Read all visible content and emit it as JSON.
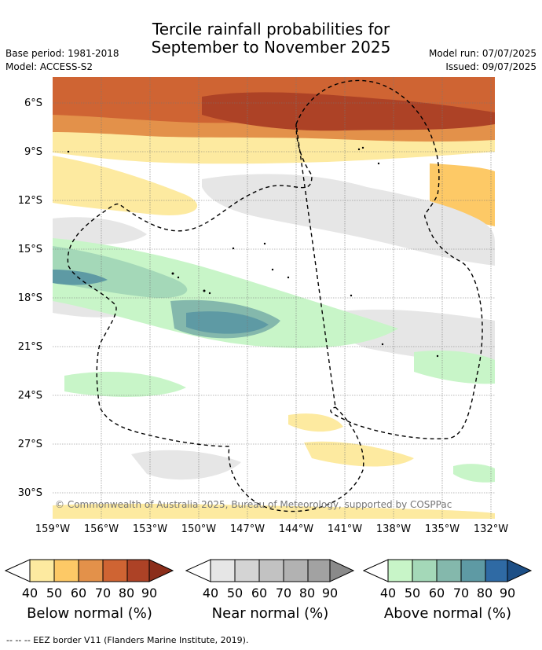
{
  "title": {
    "line1": "Tercile rainfall probabilities for",
    "line2": "September to November 2025"
  },
  "meta_left": {
    "base_period": "Base period: 1981-2018",
    "model": "Model: ACCESS-S2"
  },
  "meta_right": {
    "model_run": "Model run: 07/07/2025",
    "issued": "Issued: 09/07/2025"
  },
  "map": {
    "lat_labels": [
      "6°S",
      "9°S",
      "12°S",
      "15°S",
      "18°S",
      "21°S",
      "24°S",
      "27°S",
      "30°S"
    ],
    "lon_labels": [
      "159°W",
      "156°W",
      "153°W",
      "150°W",
      "147°W",
      "144°W",
      "141°W",
      "138°W",
      "135°W",
      "132°W"
    ],
    "copyright": "© Commonwealth of Australia 2025, Bureau of Meteorology, supported by COSPPac"
  },
  "colorbars": [
    {
      "label": "Below normal (%)",
      "ticks": [
        "40",
        "50",
        "60",
        "70",
        "80",
        "90"
      ],
      "colors": [
        "#fdeaa0",
        "#fdc966",
        "#e3914a",
        "#cf6433",
        "#ad4226",
        "#8b2d1a"
      ]
    },
    {
      "label": "Near normal (%)",
      "ticks": [
        "40",
        "50",
        "60",
        "70",
        "80",
        "90"
      ],
      "colors": [
        "#e6e6e6",
        "#d4d4d4",
        "#c2c2c2",
        "#b2b2b2",
        "#a2a2a2",
        "#8a8a8a"
      ]
    },
    {
      "label": "Above normal (%)",
      "ticks": [
        "40",
        "50",
        "60",
        "70",
        "80",
        "90"
      ],
      "colors": [
        "#c8f5c8",
        "#a4d8b8",
        "#84b8ac",
        "#5e9aa4",
        "#2f6aa4",
        "#1d4f86"
      ]
    }
  ],
  "footer": "-- -- -- EEZ border V11 (Flanders Marine Institute, 2019)."
}
